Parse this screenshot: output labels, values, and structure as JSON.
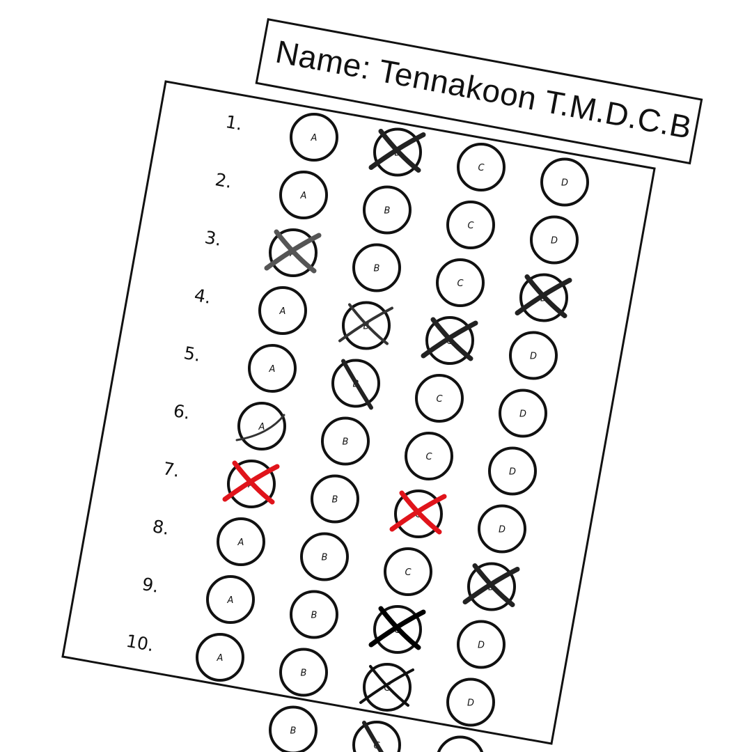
{
  "name_card": {
    "text": "Name: Tennakoon T.M.D.C.B"
  },
  "sheet": {
    "options": [
      "A",
      "B",
      "C",
      "D"
    ],
    "questions": [
      {
        "number": "1.",
        "marks": [
          {
            "option": "B",
            "style": "heavy-x",
            "color": "#222222"
          }
        ]
      },
      {
        "number": "2.",
        "marks": []
      },
      {
        "number": "3.",
        "marks": [
          {
            "option": "A",
            "style": "heavy-x",
            "color": "#555555"
          },
          {
            "option": "D",
            "style": "heavy-x",
            "color": "#222222"
          }
        ]
      },
      {
        "number": "4.",
        "marks": [
          {
            "option": "B",
            "style": "thin-x",
            "color": "#333333"
          },
          {
            "option": "C",
            "style": "heavy-x",
            "color": "#222222"
          }
        ]
      },
      {
        "number": "5.",
        "marks": [
          {
            "option": "B",
            "style": "slash",
            "color": "#222222"
          }
        ]
      },
      {
        "number": "6.",
        "marks": [
          {
            "option": "A",
            "style": "curve",
            "color": "#333333"
          }
        ]
      },
      {
        "number": "7.",
        "marks": [
          {
            "option": "A",
            "style": "heavy-x",
            "color": "#e0141b"
          },
          {
            "option": "C",
            "style": "heavy-x",
            "color": "#e0141b"
          }
        ]
      },
      {
        "number": "8.",
        "marks": [
          {
            "option": "D",
            "style": "heavy-x",
            "color": "#222222"
          }
        ]
      },
      {
        "number": "9.",
        "marks": [
          {
            "option": "C",
            "style": "heavy-x",
            "color": "#000000"
          }
        ]
      },
      {
        "number": "10.",
        "marks": [
          {
            "option": "C",
            "style": "thin-x",
            "color": "#111111"
          }
        ]
      },
      {
        "number": "",
        "marks": []
      }
    ]
  },
  "last_row": {
    "marks": [
      {
        "option": "C",
        "style": "slash",
        "color": "#222222"
      }
    ]
  },
  "colors": {
    "ink": "#111111",
    "red_mark": "#e0141b",
    "paper": "#ffffff"
  }
}
